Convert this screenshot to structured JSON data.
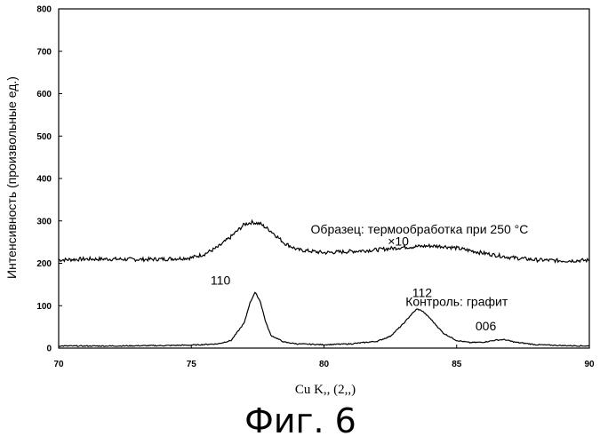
{
  "figure_caption": "Фиг. 6",
  "chart_data": {
    "type": "line",
    "xlabel": "Cu  K,, (2,,)",
    "ylabel": "Интенсивность (произвольные ед.)",
    "xlim": [
      70,
      90
    ],
    "ylim": [
      0,
      800
    ],
    "x_ticks": [
      "70",
      "75",
      "80",
      "85",
      "90"
    ],
    "y_ticks": [
      "0",
      "100",
      "200",
      "300",
      "400",
      "500",
      "600",
      "700",
      "800"
    ],
    "grid": false,
    "annotations": [
      {
        "text": "Образец: термообработка при 250 °С",
        "x": 83.6,
        "y": 270
      },
      {
        "text": "×10",
        "x": 82.8,
        "y": 242
      },
      {
        "text": "110",
        "x": 76.1,
        "y": 150
      },
      {
        "text": "112",
        "x": 83.7,
        "y": 120
      },
      {
        "text": "Контроль: графит",
        "x": 85.0,
        "y": 100
      },
      {
        "text": "006",
        "x": 86.1,
        "y": 42
      }
    ],
    "series": [
      {
        "x": [
          70,
          71,
          72,
          73,
          74,
          75,
          75.5,
          76,
          76.5,
          77,
          77.3,
          77.6,
          78,
          78.5,
          79,
          80,
          81,
          82,
          83,
          84,
          84.5,
          85,
          86,
          87,
          88,
          89,
          90
        ],
        "values": [
          208,
          210,
          210,
          209,
          210,
          213,
          222,
          238,
          263,
          292,
          297,
          293,
          276,
          248,
          232,
          225,
          228,
          232,
          238,
          241,
          240,
          236,
          224,
          214,
          208,
          206,
          207
        ],
        "color": "#000000"
      },
      {
        "x": [
          70,
          72,
          74,
          75,
          76,
          76.5,
          77,
          77.2,
          77.4,
          77.6,
          77.8,
          78,
          78.5,
          79,
          80,
          81,
          82,
          82.5,
          83,
          83.3,
          83.5,
          83.7,
          84,
          84.5,
          85,
          85.5,
          86,
          86.5,
          86.8,
          87.2,
          88,
          89,
          90
        ],
        "values": [
          5,
          5,
          6,
          7,
          10,
          18,
          60,
          105,
          132,
          110,
          62,
          30,
          14,
          10,
          8,
          10,
          16,
          28,
          58,
          80,
          92,
          88,
          70,
          35,
          18,
          13,
          14,
          19,
          20,
          14,
          8,
          6,
          5
        ],
        "color": "#000000"
      }
    ]
  }
}
